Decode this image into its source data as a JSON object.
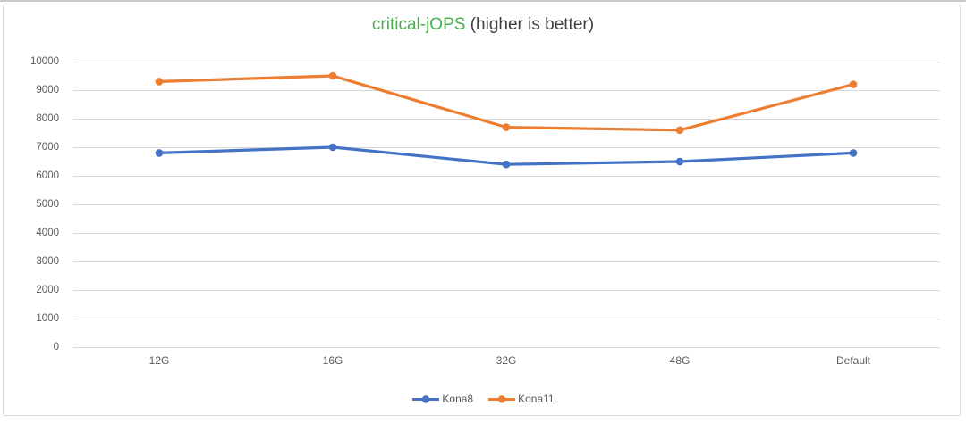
{
  "chart_data": {
    "type": "line",
    "title": "critical-jOPS (higher is better)",
    "title_highlight": "critical-jOPS",
    "title_suffix": " (higher is better)",
    "title_highlight_color": "#4CAF50",
    "title_text_color": "#3f3f3f",
    "categories": [
      "12G",
      "16G",
      "32G",
      "48G",
      "Default"
    ],
    "series": [
      {
        "name": "Kona8",
        "color": "#4472C4",
        "values": [
          6800,
          7000,
          6400,
          6500,
          6800
        ]
      },
      {
        "name": "Kona11",
        "color": "#ED7D31",
        "values": [
          9300,
          9500,
          7700,
          7600,
          9200
        ]
      }
    ],
    "xlabel": "",
    "ylabel": "",
    "ylim": [
      0,
      10000
    ],
    "ytick_step": 1000,
    "ytick_labels": [
      "0",
      "1000",
      "2000",
      "3000",
      "4000",
      "5000",
      "6000",
      "7000",
      "8000",
      "9000",
      "10000"
    ],
    "grid": true,
    "gridline_color": "#d9d9d9",
    "axis_text_color": "#595959",
    "legend_position": "bottom",
    "legend_entries": [
      "Kona8",
      "Kona11"
    ]
  },
  "frame": {
    "border_color": "#d9d9d9",
    "background_color": "#ffffff"
  }
}
